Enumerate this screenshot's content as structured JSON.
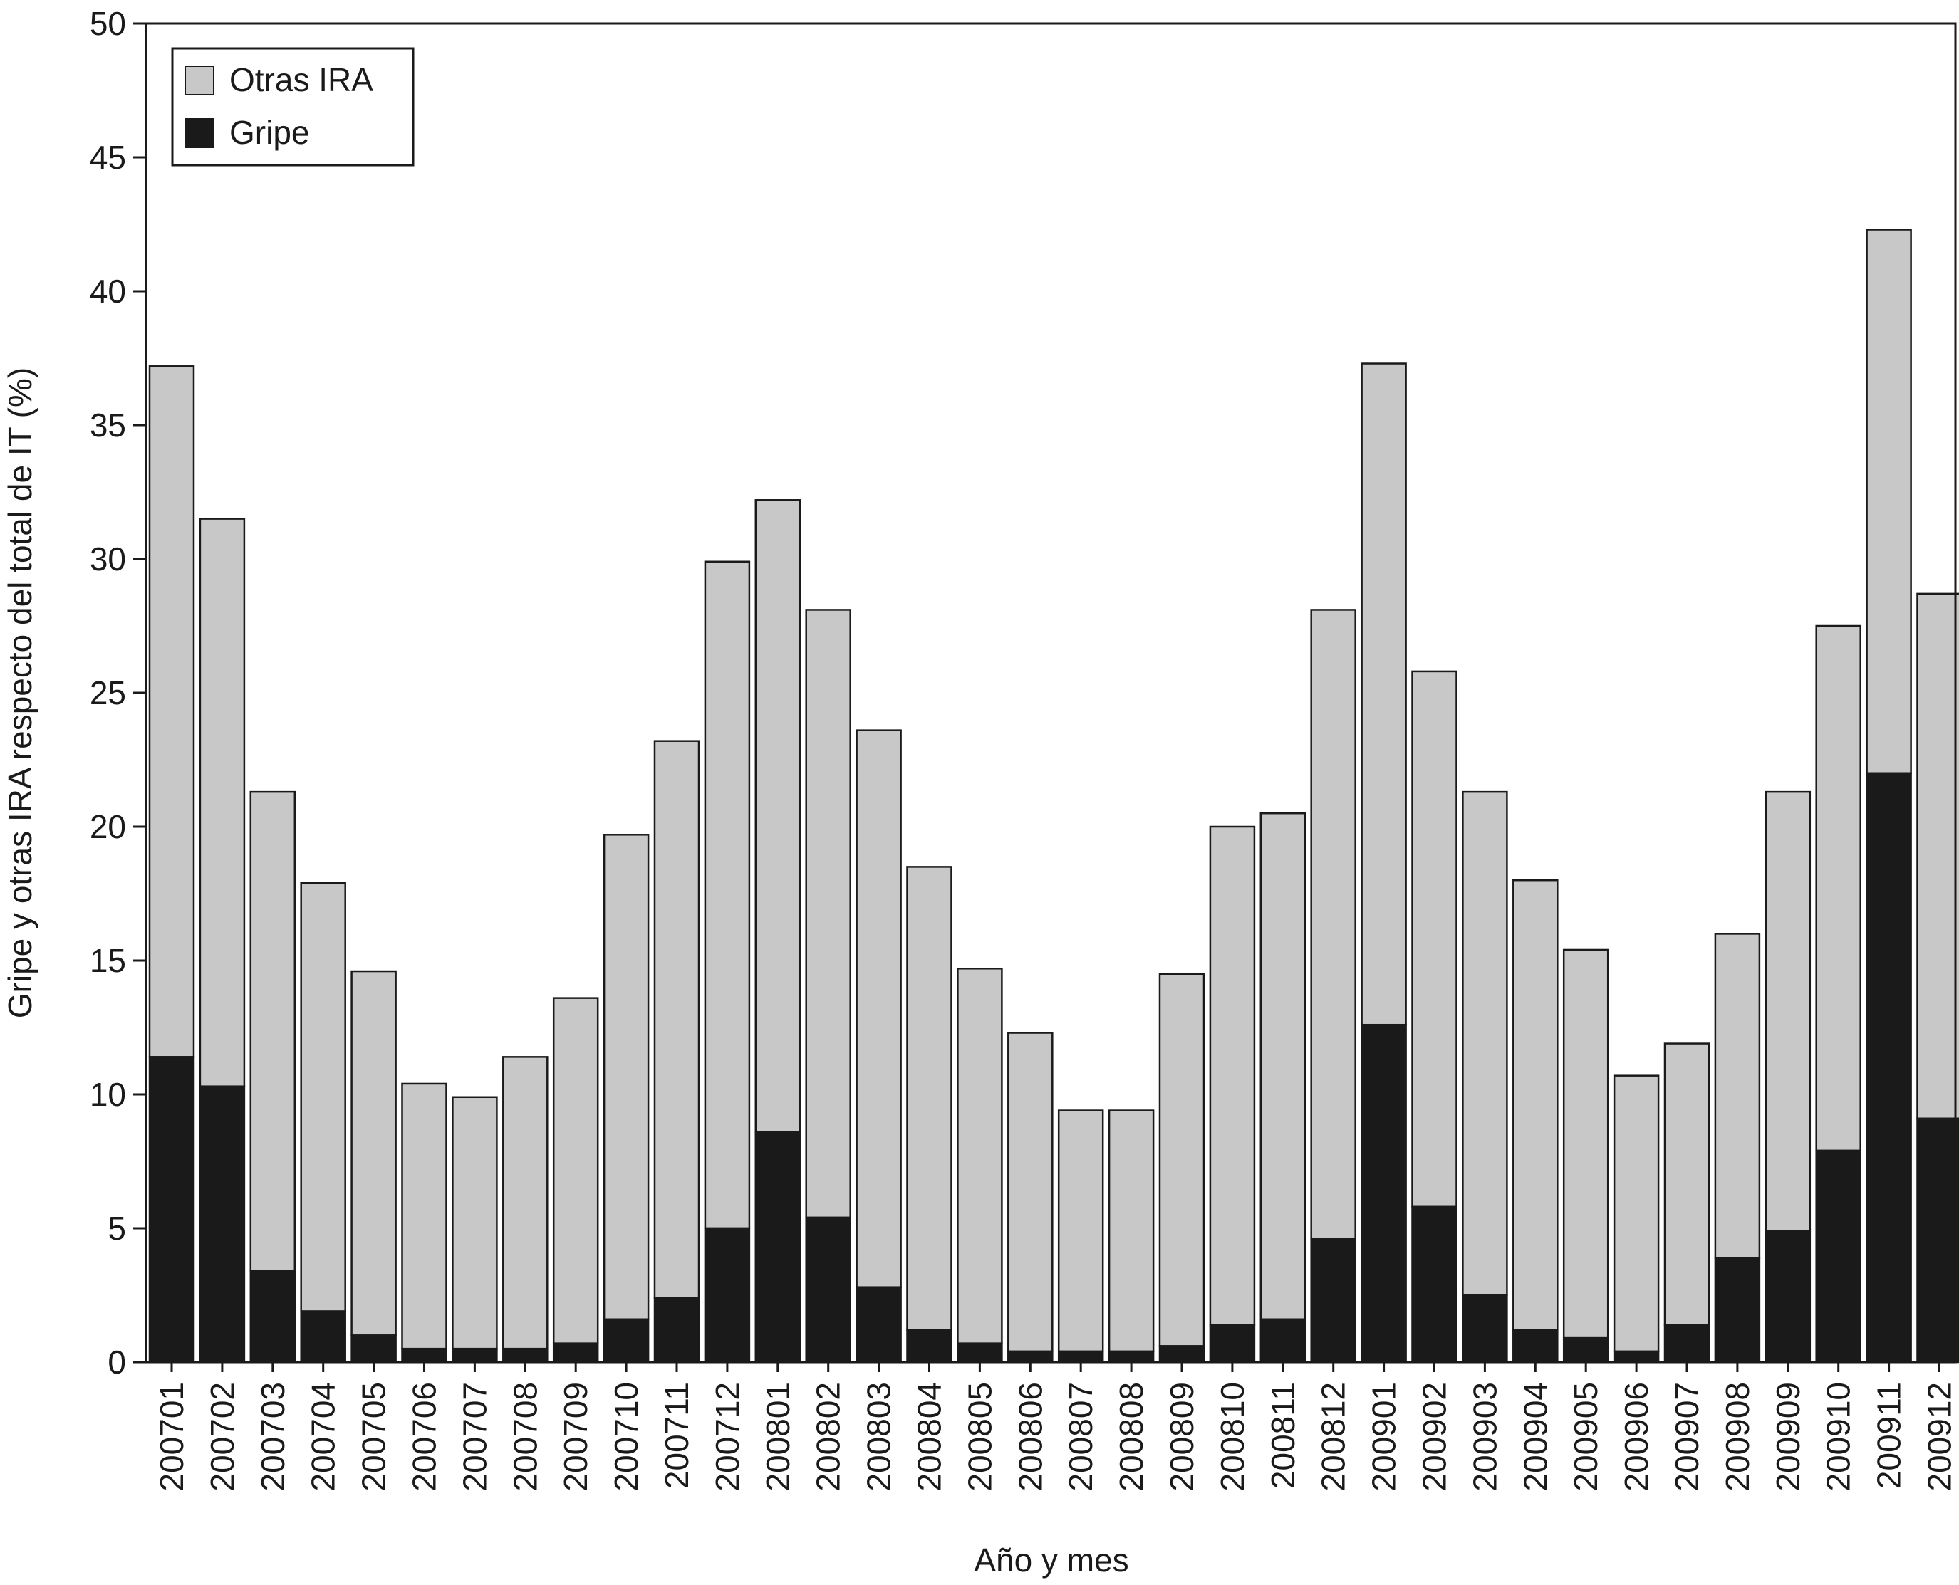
{
  "chart_data": {
    "type": "bar",
    "stacked": true,
    "xlabel": "Año y mes",
    "ylabel": "Gripe y otras IRA respecto del total de IT (%)",
    "ylim": [
      0,
      50
    ],
    "yticks": [
      0,
      5,
      10,
      15,
      20,
      25,
      30,
      35,
      40,
      45,
      50
    ],
    "grid": false,
    "legend_position": "top-left",
    "categories": [
      "200701",
      "200702",
      "200703",
      "200704",
      "200705",
      "200706",
      "200707",
      "200708",
      "200709",
      "200710",
      "200711",
      "200712",
      "200801",
      "200802",
      "200803",
      "200804",
      "200805",
      "200806",
      "200807",
      "200808",
      "200809",
      "200810",
      "200811",
      "200812",
      "200901",
      "200902",
      "200903",
      "200904",
      "200905",
      "200906",
      "200907",
      "200908",
      "200909",
      "200910",
      "200911",
      "200912"
    ],
    "series": [
      {
        "name": "Gripe",
        "color": "#1a1a1a",
        "values": [
          11.4,
          10.3,
          3.4,
          1.9,
          1.0,
          0.5,
          0.5,
          0.5,
          0.7,
          1.6,
          2.4,
          5.0,
          8.6,
          5.4,
          2.8,
          1.2,
          0.7,
          0.4,
          0.4,
          0.4,
          0.6,
          1.4,
          1.6,
          4.6,
          12.6,
          5.8,
          2.5,
          1.2,
          0.9,
          0.4,
          1.4,
          3.9,
          4.9,
          7.9,
          22.0,
          9.1
        ]
      },
      {
        "name": "Otras IRA",
        "color": "#c8c8c8",
        "values": [
          25.8,
          21.2,
          17.9,
          16.0,
          13.6,
          9.9,
          9.4,
          10.9,
          12.9,
          18.1,
          20.8,
          24.9,
          23.6,
          22.7,
          20.8,
          17.3,
          14.0,
          11.9,
          9.0,
          9.0,
          13.9,
          18.6,
          18.9,
          23.5,
          24.7,
          20.0,
          18.8,
          16.8,
          14.5,
          10.3,
          10.5,
          12.1,
          16.4,
          19.6,
          20.3,
          19.6
        ]
      }
    ]
  }
}
